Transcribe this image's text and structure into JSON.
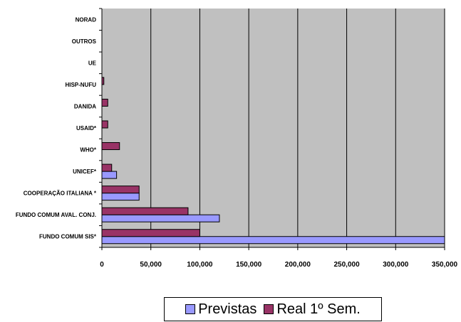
{
  "chart_data": {
    "type": "bar",
    "orientation": "horizontal",
    "categories": [
      "FUNDO COMUM SIS*",
      "FUNDO COMUM AVAL. CONJ.",
      "COOPERAÇÃO ITALIANA *",
      "UNICEF*",
      "WHO*",
      "USAID*",
      "DANIDA",
      "HISP-NUFU",
      "UE",
      "OUTROS",
      "NORAD"
    ],
    "series": [
      {
        "name": "Previstas",
        "color": "#9999ff",
        "values": [
          350000,
          120000,
          38000,
          15000,
          0,
          0,
          0,
          0,
          0,
          0,
          0
        ]
      },
      {
        "name": "Real 1º Sem.",
        "color": "#993366",
        "values": [
          100000,
          88000,
          38000,
          10000,
          18000,
          6000,
          6000,
          2000,
          0,
          0,
          0
        ]
      }
    ],
    "xlim": [
      0,
      350000
    ],
    "x_ticks": [
      "0",
      "50,000",
      "100,000",
      "150,000",
      "200,000",
      "250,000",
      "300,000",
      "350,000"
    ],
    "grid": "vertical",
    "plot_background": "#c0c0c0",
    "legend_position": "bottom"
  }
}
